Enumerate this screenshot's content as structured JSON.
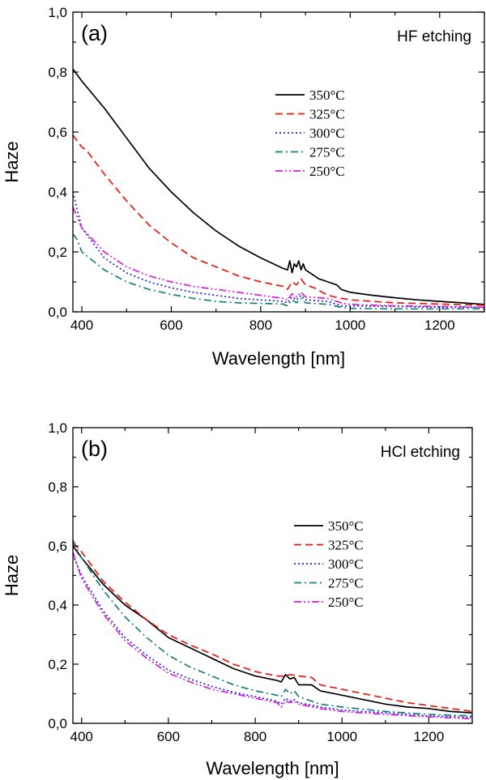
{
  "chart_data": [
    {
      "type": "line",
      "panel_label": "(a)",
      "condition": "HF etching",
      "xlabel": "Wavelength [nm]",
      "ylabel": "Haze",
      "xlim": [
        380,
        1300
      ],
      "ylim": [
        0,
        1.0
      ],
      "xticks": [
        400,
        600,
        800,
        1000,
        1200
      ],
      "yticks": [
        0.0,
        0.2,
        0.4,
        0.6,
        0.8,
        1.0
      ],
      "xtick_labels": [
        "400",
        "600",
        "800",
        "1000",
        "1200"
      ],
      "ytick_labels": [
        "0,0",
        "0,2",
        "0,4",
        "0,6",
        "0,8",
        "1,0"
      ],
      "legend_position": "upper-center",
      "series": [
        {
          "name": "350°C",
          "color": "#000000",
          "dash": "solid",
          "x": [
            380,
            400,
            450,
            500,
            550,
            600,
            650,
            700,
            750,
            800,
            850,
            860,
            865,
            870,
            875,
            880,
            885,
            890,
            895,
            900,
            910,
            920,
            930,
            940,
            950,
            960,
            970,
            980,
            1000,
            1050,
            1100,
            1150,
            1200,
            1250,
            1300
          ],
          "y": [
            0.81,
            0.77,
            0.68,
            0.58,
            0.48,
            0.4,
            0.33,
            0.27,
            0.22,
            0.18,
            0.145,
            0.14,
            0.17,
            0.13,
            0.16,
            0.15,
            0.17,
            0.14,
            0.16,
            0.14,
            0.13,
            0.12,
            0.11,
            0.105,
            0.1,
            0.095,
            0.09,
            0.075,
            0.065,
            0.055,
            0.047,
            0.04,
            0.035,
            0.03,
            0.025
          ]
        },
        {
          "name": "325°C",
          "color": "#e8190f",
          "dash": "long-dash",
          "x": [
            380,
            400,
            410,
            450,
            500,
            550,
            600,
            650,
            700,
            750,
            800,
            850,
            860,
            870,
            880,
            890,
            900,
            920,
            950,
            980,
            1000,
            1050,
            1100,
            1150,
            1200,
            1250,
            1300
          ],
          "y": [
            0.59,
            0.55,
            0.54,
            0.46,
            0.37,
            0.29,
            0.23,
            0.18,
            0.15,
            0.12,
            0.1,
            0.085,
            0.075,
            0.1,
            0.09,
            0.11,
            0.09,
            0.08,
            0.055,
            0.045,
            0.04,
            0.035,
            0.03,
            0.028,
            0.026,
            0.024,
            0.022
          ]
        },
        {
          "name": "300°C",
          "color": "#2121d4",
          "dash": "dot",
          "x": [
            380,
            400,
            450,
            500,
            550,
            600,
            650,
            700,
            750,
            800,
            850,
            860,
            870,
            880,
            890,
            900,
            950,
            980,
            1000,
            1100,
            1200,
            1300
          ],
          "y": [
            0.4,
            0.28,
            0.18,
            0.13,
            0.1,
            0.08,
            0.065,
            0.055,
            0.045,
            0.04,
            0.035,
            0.03,
            0.05,
            0.04,
            0.055,
            0.04,
            0.035,
            0.02,
            0.02,
            0.018,
            0.015,
            0.015
          ]
        },
        {
          "name": "275°C",
          "color": "#167f7f",
          "dash": "dash-dot",
          "x": [
            380,
            390,
            400,
            450,
            500,
            550,
            600,
            650,
            700,
            750,
            800,
            850,
            860,
            870,
            880,
            890,
            900,
            950,
            980,
            1000,
            1100,
            1200,
            1300
          ],
          "y": [
            0.26,
            0.24,
            0.2,
            0.14,
            0.1,
            0.075,
            0.058,
            0.045,
            0.035,
            0.03,
            0.028,
            0.026,
            0.02,
            0.04,
            0.03,
            0.045,
            0.03,
            0.025,
            0.015,
            0.012,
            0.01,
            0.01,
            0.01
          ]
        },
        {
          "name": "250°C",
          "color": "#d91fd9",
          "dash": "dash-dot-dot",
          "x": [
            380,
            400,
            450,
            500,
            550,
            600,
            650,
            700,
            750,
            800,
            850,
            860,
            870,
            880,
            890,
            900,
            950,
            980,
            1000,
            1100,
            1200,
            1300
          ],
          "y": [
            0.35,
            0.28,
            0.2,
            0.15,
            0.12,
            0.1,
            0.085,
            0.075,
            0.065,
            0.055,
            0.045,
            0.04,
            0.06,
            0.05,
            0.065,
            0.05,
            0.045,
            0.03,
            0.025,
            0.02,
            0.018,
            0.015
          ]
        }
      ]
    },
    {
      "type": "line",
      "panel_label": "(b)",
      "condition": "HCl etching",
      "xlabel": "Wavelength [nm]",
      "ylabel": "Haze",
      "xlim": [
        380,
        1300
      ],
      "ylim": [
        0,
        1.0
      ],
      "xticks": [
        400,
        600,
        800,
        1000,
        1200
      ],
      "yticks": [
        0.0,
        0.2,
        0.4,
        0.6,
        0.8,
        1.0
      ],
      "xtick_labels": [
        "400",
        "600",
        "800",
        "1000",
        "1200"
      ],
      "ytick_labels": [
        "0,0",
        "0,2",
        "0,4",
        "0,6",
        "0,8",
        "1,0"
      ],
      "legend_position": "right",
      "series": [
        {
          "name": "350°C",
          "color": "#000000",
          "dash": "solid",
          "x": [
            380,
            400,
            450,
            500,
            550,
            600,
            650,
            700,
            750,
            800,
            850,
            860,
            870,
            880,
            890,
            900,
            930,
            950,
            1000,
            1050,
            1100,
            1150,
            1200,
            1250,
            1300
          ],
          "y": [
            0.6,
            0.56,
            0.47,
            0.4,
            0.35,
            0.29,
            0.255,
            0.22,
            0.185,
            0.16,
            0.145,
            0.14,
            0.165,
            0.15,
            0.155,
            0.13,
            0.13,
            0.11,
            0.095,
            0.08,
            0.065,
            0.055,
            0.05,
            0.04,
            0.035
          ]
        },
        {
          "name": "325°C",
          "color": "#e8190f",
          "dash": "long-dash",
          "x": [
            380,
            400,
            450,
            500,
            550,
            600,
            650,
            700,
            750,
            800,
            850,
            870,
            880,
            900,
            930,
            950,
            1000,
            1050,
            1100,
            1150,
            1200,
            1250,
            1300
          ],
          "y": [
            0.61,
            0.58,
            0.48,
            0.41,
            0.35,
            0.3,
            0.265,
            0.235,
            0.2,
            0.175,
            0.16,
            0.16,
            0.165,
            0.16,
            0.155,
            0.13,
            0.115,
            0.1,
            0.085,
            0.07,
            0.06,
            0.05,
            0.04
          ]
        },
        {
          "name": "300°C",
          "color": "#2121d4",
          "dash": "dot",
          "x": [
            380,
            400,
            450,
            500,
            550,
            600,
            650,
            700,
            750,
            800,
            850,
            860,
            870,
            880,
            890,
            900,
            950,
            1000,
            1100,
            1200,
            1300
          ],
          "y": [
            0.57,
            0.5,
            0.38,
            0.29,
            0.23,
            0.18,
            0.15,
            0.125,
            0.105,
            0.09,
            0.075,
            0.065,
            0.085,
            0.075,
            0.08,
            0.07,
            0.055,
            0.045,
            0.035,
            0.025,
            0.02
          ]
        },
        {
          "name": "275°C",
          "color": "#167f7f",
          "dash": "dash-dot",
          "x": [
            380,
            400,
            450,
            500,
            550,
            600,
            650,
            700,
            750,
            800,
            850,
            860,
            870,
            880,
            890,
            900,
            950,
            1000,
            1100,
            1200,
            1300
          ],
          "y": [
            0.62,
            0.56,
            0.45,
            0.36,
            0.29,
            0.23,
            0.19,
            0.16,
            0.13,
            0.11,
            0.095,
            0.09,
            0.115,
            0.1,
            0.11,
            0.09,
            0.065,
            0.055,
            0.04,
            0.03,
            0.025
          ]
        },
        {
          "name": "250°C",
          "color": "#d91fd9",
          "dash": "dash-dot-dot",
          "x": [
            380,
            400,
            450,
            500,
            550,
            600,
            650,
            700,
            750,
            800,
            850,
            860,
            870,
            880,
            890,
            900,
            950,
            1000,
            1100,
            1200,
            1300
          ],
          "y": [
            0.58,
            0.49,
            0.37,
            0.28,
            0.22,
            0.17,
            0.14,
            0.115,
            0.1,
            0.085,
            0.07,
            0.055,
            0.075,
            0.07,
            0.075,
            0.065,
            0.05,
            0.04,
            0.03,
            0.022,
            0.015
          ]
        }
      ]
    }
  ]
}
